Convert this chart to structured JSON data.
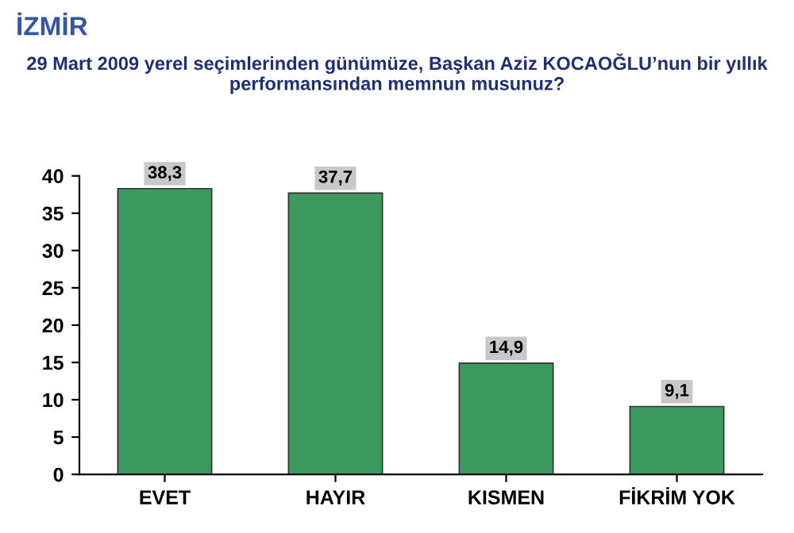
{
  "chart_data": {
    "type": "bar",
    "title": "İZMİR",
    "subtitle": "29 Mart 2009 yerel seçimlerinden günümüze, Başkan Aziz KOCAOĞLU’nun bir yıllık performansından memnun musunuz?",
    "categories": [
      "EVET",
      "HAYIR",
      "KISMEN",
      "FİKRİM YOK"
    ],
    "values": [
      38.3,
      37.7,
      14.9,
      9.1
    ],
    "value_labels": [
      "38,3",
      "37,7",
      "14,9",
      "9,1"
    ],
    "color": "#3d9a5e",
    "ylim": [
      0,
      40
    ],
    "yticks": [
      0,
      5,
      10,
      15,
      20,
      25,
      30,
      35,
      40
    ],
    "grid": false
  }
}
